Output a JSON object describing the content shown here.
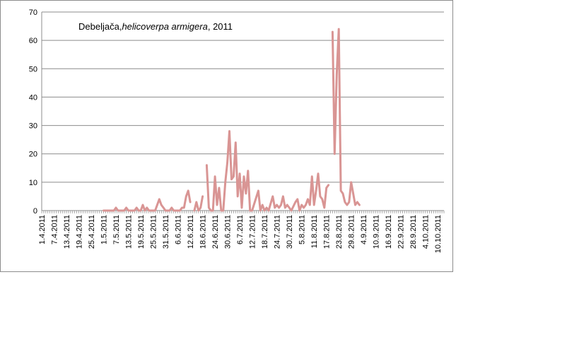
{
  "chart_data": {
    "type": "line",
    "title": {
      "part1": "Debeljača,",
      "part2": "helicoverpa armigera",
      "part3": ", 2011"
    },
    "xlabel": "",
    "ylabel": "",
    "ylim": [
      0,
      70
    ],
    "yticks": [
      0,
      10,
      20,
      30,
      40,
      50,
      60,
      70
    ],
    "grid": "horizontal",
    "legend": "none",
    "x_start": "1.4.2011",
    "x_end": "13.10.2011",
    "xtick_labels": [
      "1.4.2011",
      "7.4.2011",
      "13.4.2011",
      "19.4.2011",
      "25.4.2011",
      "1.5.2011",
      "7.5.2011",
      "13.5.2011",
      "19.5.2011",
      "25.5.2011",
      "31.5.2011",
      "6.6.2011",
      "12.6.2011",
      "18.6.2011",
      "24.6.2011",
      "30.6.2011",
      "6.7.2011",
      "12.7.2011",
      "18.7.2011",
      "24.7.2011",
      "30.7.2011",
      "5.8.2011",
      "11.8.2011",
      "17.8.2011",
      "23.8.2011",
      "29.8.2011",
      "4.9.2011",
      "10.9.2011",
      "16.9.2011",
      "22.9.2011",
      "28.9.2011",
      "4.10.2011",
      "10.10.2011"
    ],
    "line_color": "#d99594",
    "series": [
      {
        "segments": [
          [
            [
              "1.5.2011",
              0
            ],
            [
              "6.5.2011",
              0
            ],
            [
              "7.5.2011",
              1
            ],
            [
              "8.5.2011",
              0
            ],
            [
              "11.5.2011",
              0
            ],
            [
              "12.5.2011",
              1
            ],
            [
              "13.5.2011",
              0
            ],
            [
              "16.5.2011",
              0
            ],
            [
              "17.5.2011",
              1
            ],
            [
              "18.5.2011",
              0
            ],
            [
              "19.5.2011",
              0
            ],
            [
              "20.5.2011",
              2
            ],
            [
              "21.5.2011",
              0
            ],
            [
              "22.5.2011",
              1
            ],
            [
              "23.5.2011",
              0
            ],
            [
              "26.5.2011",
              0
            ],
            [
              "28.5.2011",
              4
            ],
            [
              "29.5.2011",
              2
            ],
            [
              "30.5.2011",
              1
            ],
            [
              "31.5.2011",
              0
            ],
            [
              "2.6.2011",
              0
            ],
            [
              "3.6.2011",
              1
            ],
            [
              "4.6.2011",
              0
            ],
            [
              "7.6.2011",
              0
            ],
            [
              "8.6.2011",
              1
            ],
            [
              "9.6.2011",
              1
            ],
            [
              "10.6.2011",
              5
            ],
            [
              "11.6.2011",
              7
            ],
            [
              "12.6.2011",
              3
            ]
          ],
          [
            [
              "14.6.2011",
              0
            ],
            [
              "15.6.2011",
              3
            ],
            [
              "16.6.2011",
              0
            ],
            [
              "17.6.2011",
              1
            ],
            [
              "18.6.2011",
              5
            ]
          ],
          [
            [
              "20.6.2011",
              16
            ],
            [
              "21.6.2011",
              1
            ],
            [
              "22.6.2011",
              0
            ],
            [
              "23.6.2011",
              0
            ],
            [
              "24.6.2011",
              12
            ],
            [
              "25.6.2011",
              2
            ],
            [
              "26.6.2011",
              8
            ],
            [
              "27.6.2011",
              0
            ],
            [
              "28.6.2011",
              0
            ],
            [
              "29.6.2011",
              10
            ],
            [
              "30.6.2011",
              17
            ],
            [
              "1.7.2011",
              28
            ],
            [
              "2.7.2011",
              11
            ],
            [
              "3.7.2011",
              12
            ],
            [
              "4.7.2011",
              24
            ],
            [
              "5.7.2011",
              5
            ],
            [
              "6.7.2011",
              13
            ],
            [
              "7.7.2011",
              1
            ],
            [
              "8.7.2011",
              12
            ],
            [
              "9.7.2011",
              6
            ],
            [
              "10.7.2011",
              14
            ],
            [
              "11.7.2011",
              0
            ],
            [
              "12.7.2011",
              0
            ],
            [
              "15.7.2011",
              7
            ],
            [
              "16.7.2011",
              0
            ],
            [
              "17.7.2011",
              2
            ],
            [
              "18.7.2011",
              0
            ],
            [
              "19.7.2011",
              1
            ],
            [
              "20.7.2011",
              0
            ],
            [
              "22.7.2011",
              5
            ],
            [
              "23.7.2011",
              1
            ],
            [
              "24.7.2011",
              2
            ],
            [
              "25.7.2011",
              1
            ],
            [
              "26.7.2011",
              2
            ],
            [
              "27.7.2011",
              5
            ],
            [
              "28.7.2011",
              1
            ],
            [
              "29.7.2011",
              2
            ],
            [
              "30.7.2011",
              1
            ],
            [
              "31.7.2011",
              0
            ],
            [
              "2.8.2011",
              3
            ],
            [
              "3.8.2011",
              4
            ],
            [
              "4.8.2011",
              0
            ],
            [
              "5.8.2011",
              2
            ],
            [
              "6.8.2011",
              1
            ],
            [
              "7.8.2011",
              2
            ],
            [
              "8.8.2011",
              4
            ],
            [
              "9.8.2011",
              2
            ],
            [
              "10.8.2011",
              12
            ],
            [
              "11.8.2011",
              2
            ],
            [
              "12.8.2011",
              7
            ],
            [
              "13.8.2011",
              13
            ],
            [
              "14.8.2011",
              5
            ],
            [
              "15.8.2011",
              4
            ],
            [
              "16.8.2011",
              1
            ],
            [
              "17.8.2011",
              8
            ],
            [
              "18.8.2011",
              9
            ]
          ],
          [
            [
              "20.8.2011",
              63
            ],
            [
              "21.8.2011",
              20
            ],
            [
              "22.8.2011",
              48
            ],
            [
              "23.8.2011",
              64
            ],
            [
              "24.8.2011",
              7
            ],
            [
              "25.8.2011",
              6
            ],
            [
              "26.8.2011",
              3
            ],
            [
              "27.8.2011",
              2
            ],
            [
              "28.8.2011",
              3
            ],
            [
              "29.8.2011",
              10
            ],
            [
              "30.8.2011",
              6
            ],
            [
              "31.8.2011",
              2
            ],
            [
              "1.9.2011",
              3
            ],
            [
              "2.9.2011",
              2
            ]
          ]
        ]
      }
    ]
  }
}
